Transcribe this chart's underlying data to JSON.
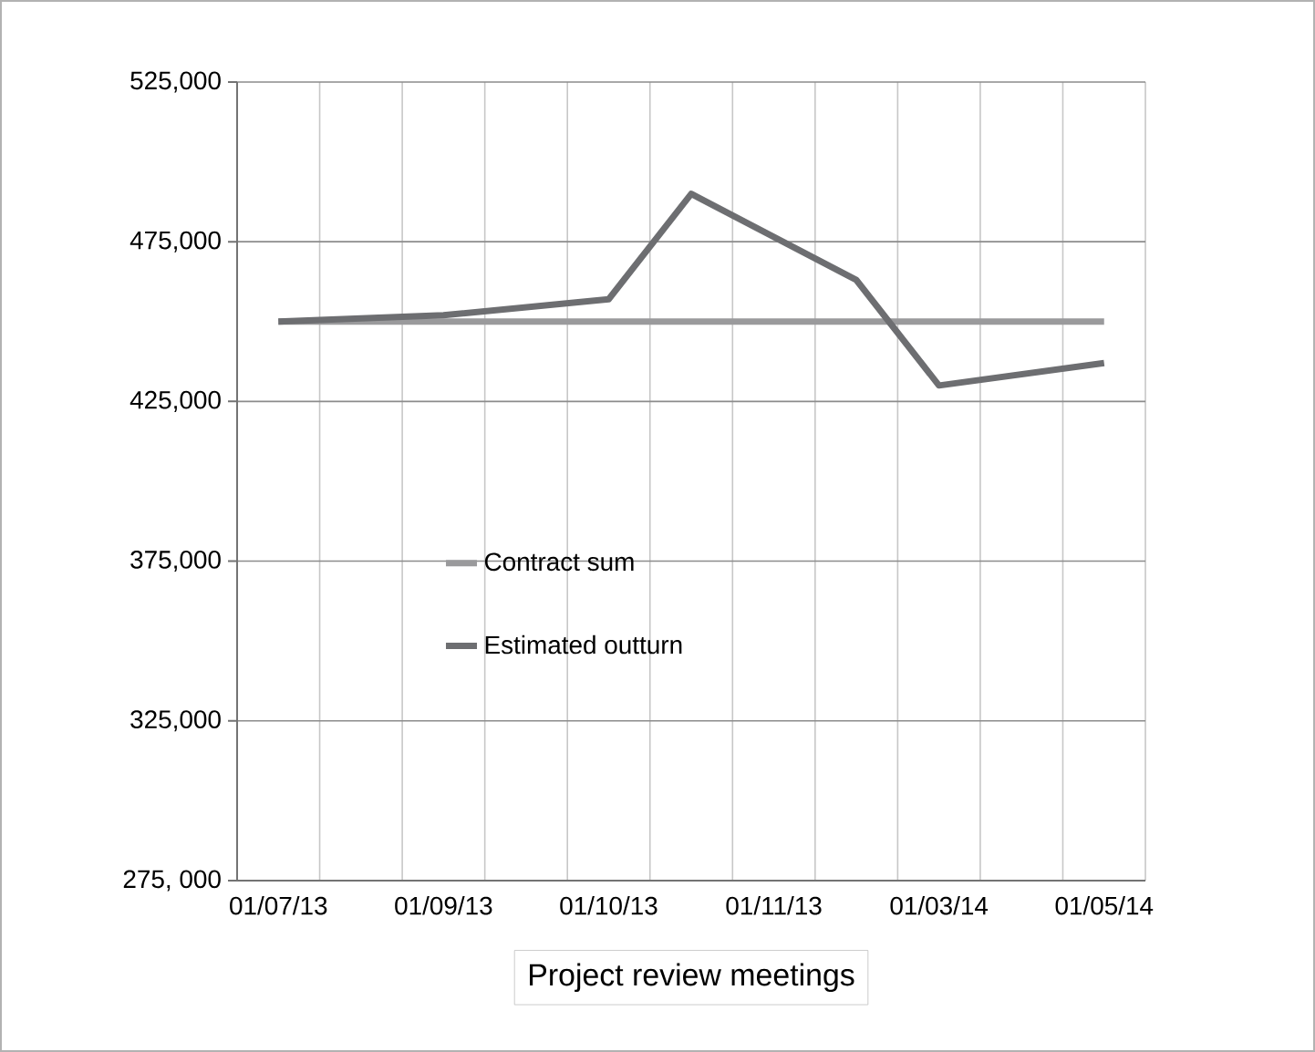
{
  "chart_data": {
    "type": "line",
    "xlabel": "Project review meetings",
    "categories": [
      "01/07/13",
      null,
      "01/09/13",
      null,
      "01/10/13",
      null,
      "01/11/13",
      null,
      "01/03/14",
      null,
      "01/05/14"
    ],
    "series": [
      {
        "name": "Contract sum",
        "color": "#9a9a9c",
        "values": [
          450000,
          450000,
          450000,
          450000,
          450000,
          450000,
          450000,
          450000,
          450000,
          450000,
          450000
        ]
      },
      {
        "name": "Estimated outturn",
        "color": "#6d6e71",
        "values": [
          450000,
          null,
          452000,
          null,
          457000,
          490000,
          null,
          463000,
          430000,
          null,
          437000
        ]
      }
    ],
    "ylim": [
      275000,
      525000
    ],
    "yticks": [
      {
        "value": 275000,
        "label": "275, 000"
      },
      {
        "value": 325000,
        "label": "325,000"
      },
      {
        "value": 375000,
        "label": "375,000"
      },
      {
        "value": 425000,
        "label": "425,000"
      },
      {
        "value": 475000,
        "label": "475,000"
      },
      {
        "value": 525000,
        "label": "525,000"
      }
    ],
    "grid": true,
    "legend": "center",
    "marker": "none",
    "line_style": "solid"
  }
}
